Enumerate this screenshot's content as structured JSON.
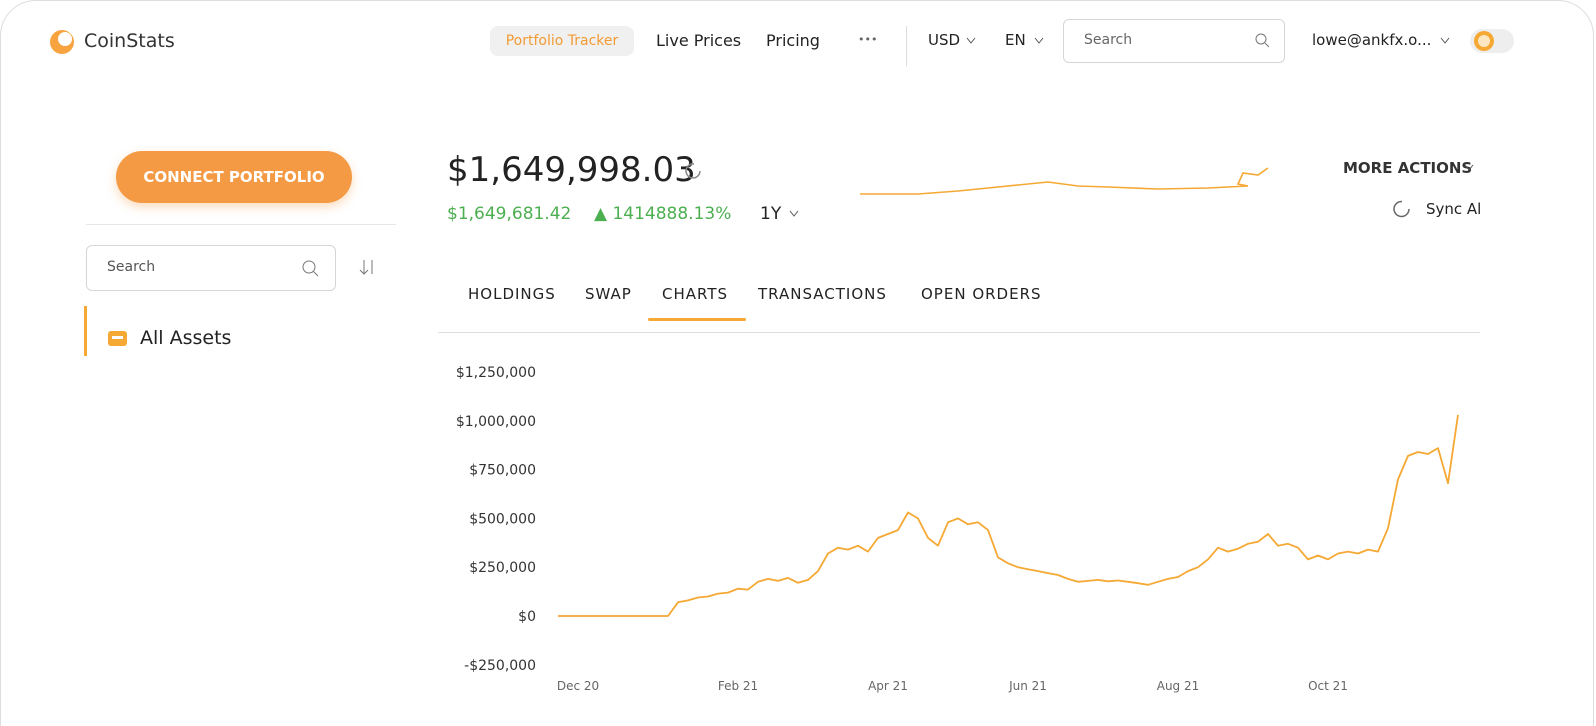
{
  "header": {
    "logo": "CoinStats",
    "nav": [
      "Portfolio Tracker",
      "Live Prices",
      "Pricing"
    ],
    "more": "•••",
    "currency": "USD",
    "language": "EN",
    "search": "Search",
    "account": "lowe@ankfx.o..."
  },
  "sidebar": {
    "connect": "CONNECT PORTFOLIO",
    "search": "Search",
    "all_assets": "All Assets"
  },
  "portfolio": {
    "total": "$1,649,998.03",
    "change": "$1,649,681.42",
    "change_pct": "▲ 1414888.13%",
    "period": "1Y",
    "more_actions": "MORE ACTIONS",
    "sync": "Sync All"
  },
  "tabs": [
    "HOLDINGS",
    "SWAP",
    "CHARTS",
    "TRANSACTIONS",
    "OPEN ORDERS"
  ],
  "chart_data": {
    "type": "line",
    "color": "#f5a833",
    "categories": [
      null,
      null,
      "Dec 20",
      null,
      null,
      null,
      null,
      null,
      null,
      null,
      null,
      null,
      null,
      null,
      null,
      null,
      null,
      null,
      "Feb 21",
      null,
      null,
      null,
      null,
      null,
      null,
      null,
      null,
      null,
      null,
      null,
      null,
      null,
      null,
      "Apr 21",
      null,
      null,
      null,
      null,
      null,
      null,
      null,
      null,
      null,
      null,
      null,
      null,
      null,
      "Jun 21",
      null,
      null,
      null,
      null,
      null,
      null,
      null,
      null,
      null,
      null,
      null,
      null,
      null,
      null,
      "Aug 21",
      null,
      null,
      null,
      null,
      null,
      null,
      null,
      null,
      null,
      null,
      null,
      null,
      null,
      null,
      "Oct 21",
      null,
      null,
      null,
      null,
      null,
      null,
      null,
      null,
      null,
      null,
      null,
      null,
      null
    ],
    "values": [
      0,
      0,
      0,
      0,
      0,
      0,
      0,
      0,
      0,
      0,
      0,
      0,
      70000,
      80000,
      95000,
      100000,
      115000,
      120000,
      140000,
      135000,
      175000,
      190000,
      180000,
      195000,
      170000,
      185000,
      230000,
      320000,
      350000,
      340000,
      360000,
      330000,
      400000,
      420000,
      440000,
      530000,
      500000,
      400000,
      360000,
      480000,
      500000,
      470000,
      480000,
      440000,
      300000,
      270000,
      250000,
      240000,
      230000,
      220000,
      210000,
      190000,
      175000,
      180000,
      185000,
      178000,
      182000,
      175000,
      168000,
      160000,
      175000,
      190000,
      200000,
      230000,
      250000,
      290000,
      350000,
      330000,
      345000,
      370000,
      380000,
      420000,
      360000,
      370000,
      350000,
      290000,
      310000,
      290000,
      320000,
      330000,
      320000,
      340000,
      330000,
      450000,
      700000,
      820000,
      840000,
      830000,
      860000,
      680000,
      1030000
    ],
    "ylim": [
      -250000,
      1250000
    ],
    "yticks": [
      {
        "value": -250000,
        "label": "-$250,000"
      },
      {
        "value": 0,
        "label": "$0"
      },
      {
        "value": 250000,
        "label": "$250,000"
      },
      {
        "value": 500000,
        "label": "$500,000"
      },
      {
        "value": 750000,
        "label": "$750,000"
      },
      {
        "value": 1000000,
        "label": "$1,000,000"
      },
      {
        "value": 1250000,
        "label": "$1,250,000"
      }
    ],
    "grid": false
  }
}
